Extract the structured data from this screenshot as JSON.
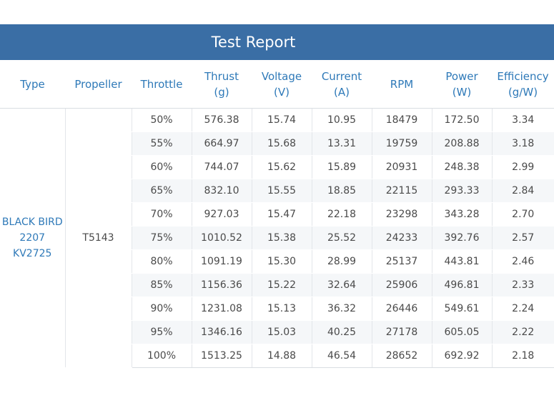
{
  "title": "Test Report",
  "headers": [
    {
      "line1": "Type",
      "line2": ""
    },
    {
      "line1": "Propeller",
      "line2": ""
    },
    {
      "line1": "Throttle",
      "line2": ""
    },
    {
      "line1": "Thrust",
      "line2": "(g)"
    },
    {
      "line1": "Voltage",
      "line2": "(V)"
    },
    {
      "line1": "Current",
      "line2": "(A)"
    },
    {
      "line1": "RPM",
      "line2": ""
    },
    {
      "line1": "Power",
      "line2": "(W)"
    },
    {
      "line1": "Efficiency",
      "line2": "(g/W)"
    }
  ],
  "type_lines": [
    "BLACK BIRD",
    "2207",
    "KV2725"
  ],
  "propeller": "T5143",
  "rows": [
    [
      "50%",
      "576.38",
      "15.74",
      "10.95",
      "18479",
      "172.50",
      "3.34"
    ],
    [
      "55%",
      "664.97",
      "15.68",
      "13.31",
      "19759",
      "208.88",
      "3.18"
    ],
    [
      "60%",
      "744.07",
      "15.62",
      "15.89",
      "20931",
      "248.38",
      "2.99"
    ],
    [
      "65%",
      "832.10",
      "15.55",
      "18.85",
      "22115",
      "293.33",
      "2.84"
    ],
    [
      "70%",
      "927.03",
      "15.47",
      "22.18",
      "23298",
      "343.28",
      "2.70"
    ],
    [
      "75%",
      "1010.52",
      "15.38",
      "25.52",
      "24233",
      "392.76",
      "2.57"
    ],
    [
      "80%",
      "1091.19",
      "15.30",
      "28.99",
      "25137",
      "443.81",
      "2.46"
    ],
    [
      "85%",
      "1156.36",
      "15.22",
      "32.64",
      "25906",
      "496.81",
      "2.33"
    ],
    [
      "90%",
      "1231.08",
      "15.13",
      "36.32",
      "26446",
      "549.61",
      "2.24"
    ],
    [
      "95%",
      "1346.16",
      "15.03",
      "40.25",
      "27178",
      "605.05",
      "2.22"
    ],
    [
      "100%",
      "1513.25",
      "14.88",
      "46.54",
      "28652",
      "692.92",
      "2.18"
    ]
  ],
  "colors": {
    "title_bar": "#3a6ea5",
    "header_text": "#2e79b8",
    "row_stripe": "#f5f7f9",
    "cell_text": "#4a4a4a"
  }
}
